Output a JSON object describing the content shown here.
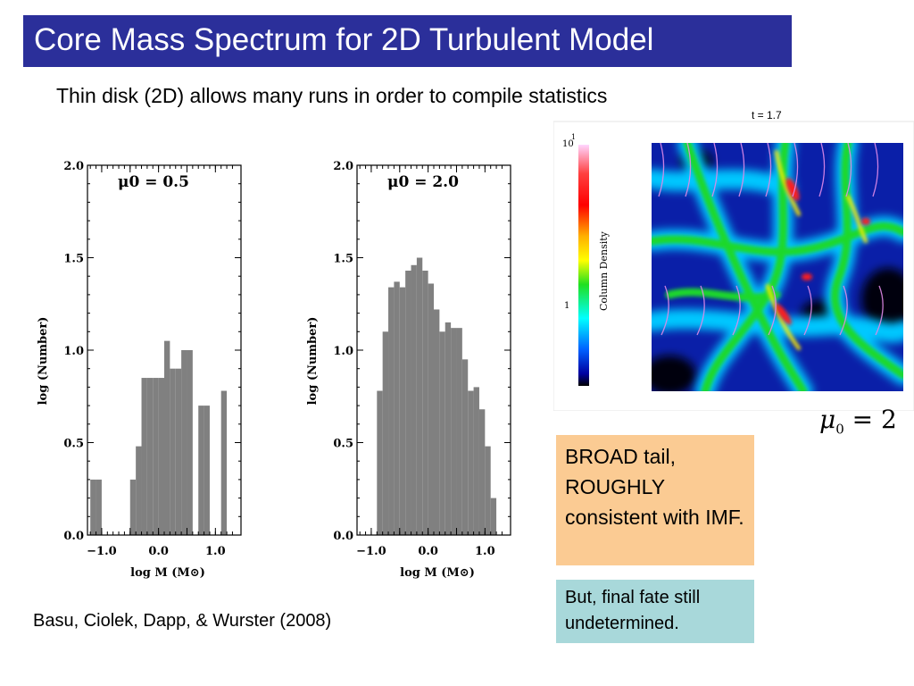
{
  "slide": {
    "title": "Core Mass Spectrum for 2D Turbulent Model",
    "subtitle": "Thin disk (2D) allows many runs in order to compile statistics",
    "citation": "Basu, Ciolek, Dapp, & Wurster (2008)"
  },
  "simulation": {
    "time_label": "t = 1.7",
    "colorbar_label": "Column Density",
    "colorbar_ticks": [
      "10",
      "1"
    ],
    "colorbar_exponent": "1",
    "mu_symbol": "μ",
    "mu_subscript": "0",
    "mu_rest": " = 2"
  },
  "boxes": {
    "broad": "BROAD tail, ROUGHLY consistent with IMF.",
    "fate": "But, final fate still undetermined."
  },
  "chart_data": [
    {
      "type": "bar",
      "annotation": "μ0 = 0.5",
      "xlabel": "log M (M⊙)",
      "ylabel": "log (Number)",
      "xlim": [
        -1.25,
        1.45
      ],
      "ylim": [
        0,
        2.0
      ],
      "yticks": [
        "0.0",
        "0.5",
        "1.0",
        "1.5",
        "2.0"
      ],
      "xticks": [
        "−1.0",
        "−0.5",
        "0.0",
        "0.5",
        "1.0"
      ],
      "xtick_values": [
        -1.0,
        -0.5,
        0.0,
        0.5,
        1.0
      ],
      "bin_width": 0.1,
      "bin_starts": [
        -1.2,
        -1.1,
        -1.0,
        -0.9,
        -0.8,
        -0.7,
        -0.6,
        -0.5,
        -0.4,
        -0.3,
        -0.2,
        -0.1,
        0.0,
        0.1,
        0.2,
        0.3,
        0.4,
        0.5,
        0.6,
        0.7,
        0.8,
        0.9,
        1.0,
        1.1,
        1.2
      ],
      "values": [
        0.3,
        0.3,
        0,
        0,
        0,
        0,
        0,
        0.3,
        0.48,
        0.85,
        0.85,
        0.85,
        0.85,
        1.05,
        0.9,
        0.9,
        1.0,
        1.0,
        0,
        0.7,
        0.7,
        0,
        0,
        0.78,
        0
      ]
    },
    {
      "type": "bar",
      "annotation": "μ0 = 2.0",
      "xlabel": "log M (M⊙)",
      "ylabel": "log (Number)",
      "xlim": [
        -1.25,
        1.45
      ],
      "ylim": [
        0,
        2.0
      ],
      "yticks": [
        "0.0",
        "0.5",
        "1.0",
        "1.5",
        "2.0"
      ],
      "xticks": [
        "−1.0",
        "−0.5",
        "0.0",
        "0.5",
        "1.0"
      ],
      "xtick_values": [
        -1.0,
        -0.5,
        0.0,
        0.5,
        1.0
      ],
      "bin_width": 0.1,
      "bin_starts": [
        -1.2,
        -1.1,
        -1.0,
        -0.9,
        -0.8,
        -0.7,
        -0.6,
        -0.5,
        -0.4,
        -0.3,
        -0.2,
        -0.1,
        0.0,
        0.1,
        0.2,
        0.3,
        0.4,
        0.5,
        0.6,
        0.7,
        0.8,
        0.9,
        1.0,
        1.1,
        1.2
      ],
      "values": [
        0,
        0,
        0,
        0.78,
        1.1,
        1.34,
        1.37,
        1.34,
        1.43,
        1.46,
        1.5,
        1.43,
        1.36,
        1.22,
        1.1,
        1.15,
        1.12,
        1.12,
        0.95,
        0.78,
        0.8,
        0.68,
        0.48,
        0.2,
        0
      ]
    }
  ]
}
